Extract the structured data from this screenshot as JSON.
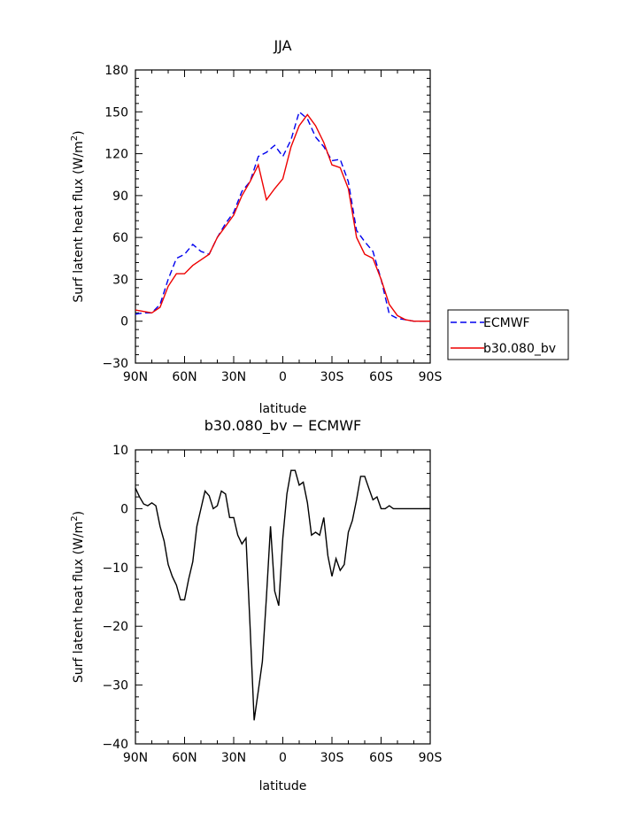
{
  "chart_data": [
    {
      "type": "line",
      "title": "JJA",
      "xlabel": "latitude",
      "ylabel": "Surf latent heat flux (W/m²)",
      "xlim": [
        90,
        -90
      ],
      "ylim": [
        -30,
        180
      ],
      "xticks": [
        90,
        60,
        30,
        0,
        -30,
        -60,
        -90
      ],
      "xtick_labels": [
        "90N",
        "60N",
        "30N",
        "0",
        "30S",
        "60S",
        "90S"
      ],
      "yticks": [
        -30,
        0,
        30,
        60,
        90,
        120,
        150,
        180
      ],
      "ytick_labels": [
        "−30",
        "0",
        "30",
        "60",
        "90",
        "120",
        "150",
        "180"
      ],
      "legend": {
        "position": "right",
        "entries": [
          "ECMWF",
          "b30.080_bv"
        ]
      },
      "series": [
        {
          "name": "ECMWF",
          "color": "#0000ee",
          "dash": "dashed",
          "x": [
            90,
            85,
            80,
            75,
            70,
            65,
            60,
            55,
            50,
            45,
            40,
            35,
            30,
            25,
            20,
            15,
            10,
            5,
            0,
            -5,
            -10,
            -15,
            -20,
            -25,
            -30,
            -35,
            -40,
            -45,
            -50,
            -55,
            -60,
            -65,
            -70,
            -75,
            -80,
            -85,
            -90
          ],
          "y": [
            5,
            6,
            6,
            12,
            30,
            45,
            48,
            55,
            50,
            48,
            60,
            70,
            78,
            93,
            100,
            118,
            121,
            126,
            118,
            130,
            150,
            145,
            132,
            125,
            115,
            116,
            100,
            65,
            57,
            50,
            30,
            5,
            2,
            1,
            0,
            0,
            0
          ]
        },
        {
          "name": "b30.080_bv",
          "color": "#ee0000",
          "dash": "solid",
          "x": [
            90,
            85,
            80,
            75,
            70,
            65,
            60,
            55,
            50,
            45,
            40,
            35,
            30,
            25,
            20,
            15,
            10,
            5,
            0,
            -5,
            -10,
            -15,
            -20,
            -25,
            -30,
            -35,
            -40,
            -45,
            -50,
            -55,
            -60,
            -65,
            -70,
            -75,
            -80,
            -85,
            -90
          ],
          "y": [
            8,
            7,
            6,
            10,
            25,
            34,
            34,
            40,
            44,
            48,
            60,
            68,
            76,
            90,
            100,
            112,
            87,
            95,
            102,
            125,
            140,
            148,
            140,
            128,
            112,
            110,
            95,
            60,
            48,
            45,
            30,
            12,
            4,
            1,
            0,
            0,
            0
          ]
        }
      ]
    },
    {
      "type": "line",
      "title": "b30.080_bv − ECMWF",
      "xlabel": "latitude",
      "ylabel": "Surf latent heat flux (W/m²)",
      "xlim": [
        90,
        -90
      ],
      "ylim": [
        -40,
        10
      ],
      "xticks": [
        90,
        60,
        30,
        0,
        -30,
        -60,
        -90
      ],
      "xtick_labels": [
        "90N",
        "60N",
        "30N",
        "0",
        "30S",
        "60S",
        "90S"
      ],
      "yticks": [
        -40,
        -30,
        -20,
        -10,
        0,
        10
      ],
      "ytick_labels": [
        "−40",
        "−30",
        "−20",
        "−10",
        "0",
        "10"
      ],
      "series": [
        {
          "color": "#000000",
          "dash": "solid",
          "x": [
            90,
            87.5,
            85,
            82.5,
            80,
            77.5,
            75,
            72.5,
            70,
            67.5,
            65,
            62.5,
            60,
            57.5,
            55,
            52.5,
            50,
            47.5,
            45,
            42.5,
            40,
            37.5,
            35,
            32.5,
            30,
            27.5,
            25,
            22.5,
            20,
            17.5,
            15,
            12.5,
            10,
            7.5,
            5,
            2.5,
            0,
            -2.5,
            -5,
            -7.5,
            -10,
            -12.5,
            -15,
            -17.5,
            -20,
            -22.5,
            -25,
            -27.5,
            -30,
            -32.5,
            -35,
            -37.5,
            -40,
            -42.5,
            -45,
            -47.5,
            -50,
            -52.5,
            -55,
            -57.5,
            -60,
            -62.5,
            -65,
            -67.5,
            -70,
            -72.5,
            -75,
            -77.5,
            -80,
            -82.5,
            -85,
            -87.5,
            -90
          ],
          "y": [
            3.5,
            2.0,
            0.8,
            0.5,
            1.0,
            0.5,
            -3.0,
            -5.5,
            -9.5,
            -11.5,
            -13.0,
            -15.5,
            -15.5,
            -12.0,
            -9.0,
            -3.0,
            0.0,
            3.0,
            2.2,
            0.0,
            0.5,
            3.0,
            2.5,
            -1.5,
            -1.5,
            -4.5,
            -6.0,
            -5.0,
            -20.0,
            -36.0,
            -31.0,
            -26.0,
            -15.0,
            -3.0,
            -14.0,
            -16.5,
            -5.0,
            2.5,
            6.5,
            6.5,
            4.0,
            4.5,
            1.0,
            -4.5,
            -4.0,
            -4.5,
            -1.5,
            -8.0,
            -11.5,
            -8.5,
            -10.5,
            -9.5,
            -4.0,
            -2.0,
            1.5,
            5.5,
            5.5,
            3.5,
            1.5,
            2.0,
            0.0,
            0.0,
            0.5,
            0.0,
            0.0,
            0.0,
            0.0,
            0.0,
            0.0,
            0.0,
            0.0,
            0.0,
            0.0
          ]
        }
      ]
    }
  ]
}
